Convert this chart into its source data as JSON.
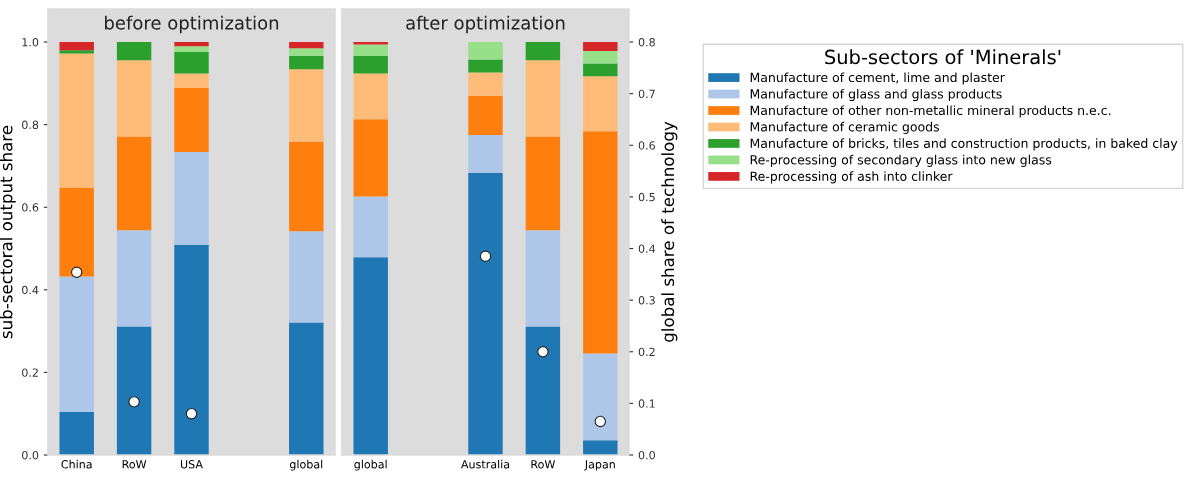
{
  "chart_data": [
    {
      "type": "bar",
      "title": "before optimization",
      "ylabel": "sub-sectoral output share",
      "stacked": true,
      "legend": "right",
      "legend_title": "Sub-sectors of 'Minerals'",
      "tick_labels": [
        "x",
        "y"
      ],
      "categories": [
        "China",
        "RoW",
        "USA",
        null,
        "global"
      ],
      "ylim": [
        0,
        1.08
      ],
      "yticks": [
        {
          "value": 0,
          "label": "0.0"
        },
        0.2,
        0.4,
        0.6,
        0.8,
        {
          "value": 1,
          "label": "1.0"
        }
      ],
      "y2lim": [
        0,
        0.864
      ],
      "series": [
        {
          "name": "Manufacture of cement, lime and plaster",
          "color": "#1f77b4",
          "values": [
            0.105,
            0.311,
            0.509,
            null,
            0.321
          ]
        },
        {
          "name": "Manufacture of glass and glass products",
          "color": "#aec7e8",
          "values": [
            0.327,
            0.233,
            0.225,
            null,
            0.221
          ]
        },
        {
          "name": "Manufacture of other non-metallic mineral products n.e.c.",
          "color": "#ff7f0e",
          "values": [
            0.216,
            0.227,
            0.155,
            null,
            0.217
          ]
        },
        {
          "name": "Manufacture of ceramic goods",
          "color": "#ffbb78",
          "values": [
            0.324,
            0.185,
            0.035,
            null,
            0.175
          ]
        },
        {
          "name": "Manufacture of bricks, tiles and construction products, in baked clay",
          "color": "#2ca02c",
          "values": [
            0.008,
            0.044,
            0.052,
            null,
            0.033
          ]
        },
        {
          "name": "Re-processing of secondary glass into new glass",
          "color": "#98df8a",
          "values": [
            0,
            0,
            0.014,
            null,
            0.018
          ]
        },
        {
          "name": "Re-processing of ash into clinker",
          "color": "#d62728",
          "values": [
            0.02,
            0,
            0.01,
            null,
            0.015
          ]
        },
        {
          "type": "scatter",
          "axis": "y2",
          "color": "#ffffff",
          "marker": "circle",
          "values": [
            0.354,
            0.103,
            0.08,
            null,
            null
          ]
        }
      ]
    },
    {
      "type": "bar",
      "title": "after optimization",
      "y2label": "global share of technology",
      "stacked": true,
      "tick_labels": [
        "x",
        "y2"
      ],
      "categories": [
        "global",
        null,
        "Australia",
        "RoW",
        "Japan"
      ],
      "ylim": [
        0,
        1.08
      ],
      "y2lim": [
        0,
        0.864
      ],
      "y2ticks": [
        {
          "value": 0,
          "label": "0.0"
        },
        0.1,
        0.2,
        0.3,
        0.4,
        0.5,
        0.6,
        0.7,
        0.8
      ],
      "series": [
        {
          "color": "#1f77b4",
          "values": [
            0.479,
            null,
            0.683,
            0.311,
            0.036
          ]
        },
        {
          "color": "#aec7e8",
          "values": [
            0.147,
            null,
            0.092,
            0.233,
            0.21
          ]
        },
        {
          "color": "#ff7f0e",
          "values": [
            0.187,
            null,
            0.095,
            0.227,
            0.538
          ]
        },
        {
          "color": "#ffbb78",
          "values": [
            0.111,
            null,
            0.056,
            0.185,
            0.133
          ]
        },
        {
          "color": "#2ca02c",
          "values": [
            0.042,
            null,
            0.032,
            0.044,
            0.031
          ]
        },
        {
          "color": "#98df8a",
          "values": [
            0.028,
            null,
            0.042,
            0,
            0.03
          ]
        },
        {
          "color": "#d62728",
          "values": [
            0.006,
            null,
            0,
            0,
            0.022
          ]
        },
        {
          "type": "scatter",
          "axis": "y2",
          "color": "#ffffff",
          "marker": "circle",
          "values": [
            null,
            null,
            0.385,
            0.2,
            0.065
          ]
        }
      ]
    }
  ]
}
